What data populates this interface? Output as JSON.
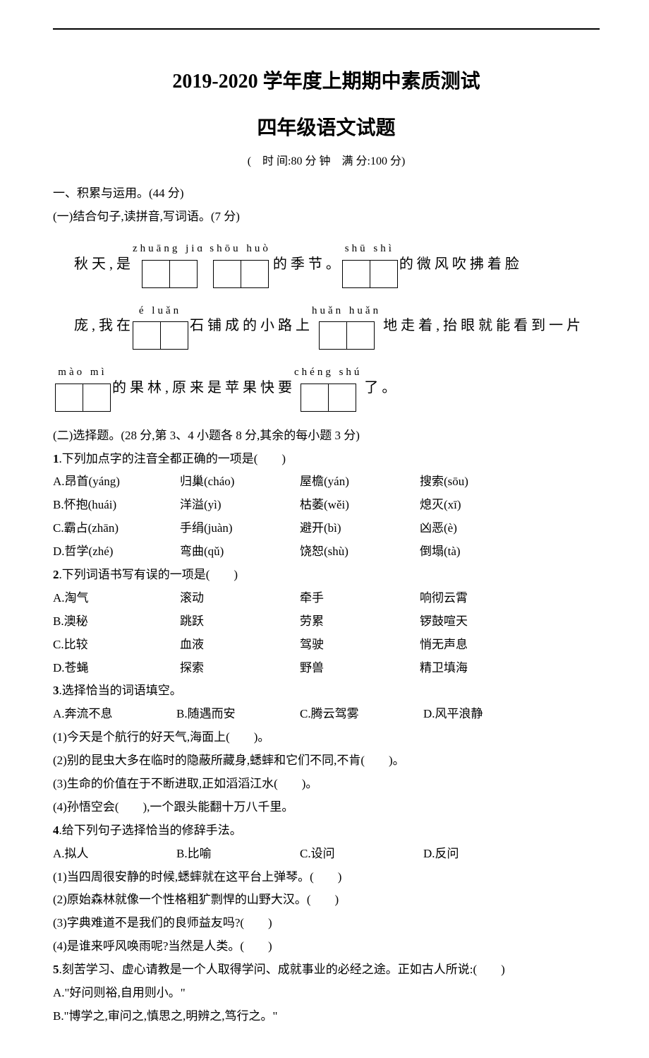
{
  "header": {
    "title_main": "2019-2020 学年度上期期中素质测试",
    "title_sub": "四年级语文试题",
    "meta": "(　时 间:80 分 钟　满 分:100 分)"
  },
  "section1": {
    "heading": "一、积累与运用。(44 分)",
    "part1": {
      "heading": "(一)结合句子,读拼音,写词语。(7 分)",
      "row1": {
        "pre": "秋 天 , 是",
        "p1": "zhuāng  jiɑ",
        "p2": "shōu  huò",
        "mid": "的 季 节 。",
        "p3": "shū   shì",
        "post": "的 微 风 吹 拂 着 脸"
      },
      "row2": {
        "pre": "庞 , 我 在",
        "p1": "é    luǎn",
        "mid": "石 铺 成 的 小 路 上",
        "p2": "huǎn  huǎn",
        "post": "地 走 着 , 抬 眼 就 能 看 到 一 片"
      },
      "row3": {
        "p1": "mào   mì",
        "mid": "的 果 林 , 原 来 是 苹 果 快 要",
        "p2": "chéng  shú",
        "post": "了 。"
      }
    },
    "part2": {
      "heading": "(二)选择题。(28 分,第 3、4 小题各 8 分,其余的每小题 3 分)",
      "q1": {
        "stem": "1.下列加点字的注音全都正确的一项是(　　)",
        "opts": [
          [
            "A.昂首(yáng)",
            "归巢(cháo)",
            "屋檐(yán)",
            "搜索(sōu)"
          ],
          [
            "B.怀抱(huái)",
            "洋溢(yì)",
            "枯萎(wěi)",
            "熄灭(xī)"
          ],
          [
            "C.霸占(zhān)",
            "手绢(juàn)",
            "避开(bì)",
            "凶恶(è)"
          ],
          [
            "D.哲学(zhé)",
            "弯曲(qǔ)",
            "饶恕(shù)",
            "倒塌(tà)"
          ]
        ]
      },
      "q2": {
        "stem": "2.下列词语书写有误的一项是(　　)",
        "opts": [
          [
            "A.淘气",
            "滚动",
            "牵手",
            "响彻云霄"
          ],
          [
            "B.澳秘",
            "跳跃",
            "劳累",
            "锣鼓喧天"
          ],
          [
            "C.比较",
            "血液",
            "驾驶",
            "悄无声息"
          ],
          [
            "D.苍蝇",
            "探索",
            "野兽",
            "精卫填海"
          ]
        ]
      },
      "q3": {
        "stem": "3.选择恰当的词语填空。",
        "opts": [
          "A.奔流不息",
          "B.随遇而安",
          "C.腾云驾雾",
          "D.风平浪静"
        ],
        "subs": [
          "(1)今天是个航行的好天气,海面上(　　)。",
          "(2)别的昆虫大多在临时的隐蔽所藏身,蟋蟀和它们不同,不肯(　　)。",
          "(3)生命的价值在于不断进取,正如滔滔江水(　　)。",
          "(4)孙悟空会(　　),一个跟头能翻十万八千里。"
        ]
      },
      "q4": {
        "stem": "4.给下列句子选择恰当的修辞手法。",
        "opts": [
          "A.拟人",
          "B.比喻",
          "C.设问",
          "D.反问"
        ],
        "subs": [
          "(1)当四周很安静的时候,蟋蟀就在这平台上弹琴。(　　)",
          "(2)原始森林就像一个性格粗犷剽悍的山野大汉。(　　)",
          "(3)字典难道不是我们的良师益友吗?(　　)",
          "(4)是谁来呼风唤雨呢?当然是人类。(　　)"
        ]
      },
      "q5": {
        "stem": "5.刻苦学习、虚心请教是一个人取得学问、成就事业的必经之途。正如古人所说:(　　)",
        "opts": [
          "A.\"好问则裕,自用则小。\"",
          "B.\"博学之,审问之,慎思之,明辨之,笃行之。\""
        ]
      }
    }
  }
}
